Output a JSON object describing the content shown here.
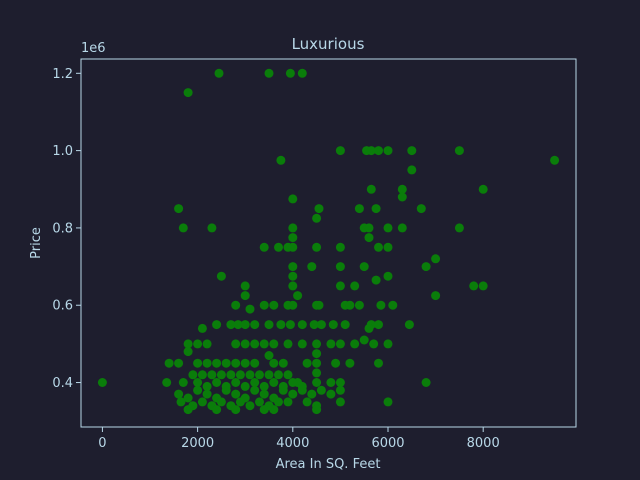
{
  "chart_data": {
    "type": "scatter",
    "title": "Luxurious",
    "xlabel": "Area In SQ. Feet",
    "ylabel": "Price",
    "y_offset_label": "1e6",
    "xlim": [
      -450,
      9950
    ],
    "ylim": [
      0.285,
      1.237
    ],
    "x_ticks": [
      0,
      2000,
      4000,
      6000,
      8000
    ],
    "x_tick_labels": [
      "0",
      "2000",
      "4000",
      "6000",
      "8000"
    ],
    "y_ticks": [
      0.4,
      0.6,
      0.8,
      1.0,
      1.2
    ],
    "y_tick_labels": [
      "0.4",
      "0.6",
      "0.8",
      "1.0",
      "1.2"
    ],
    "grid": false,
    "colors": {
      "background": "#1e1e2e",
      "axes": "#b8d8e8",
      "points": "#0a7d0a"
    },
    "points": [
      [
        0,
        0.4
      ],
      [
        1350,
        0.4
      ],
      [
        1400,
        0.45
      ],
      [
        1600,
        0.85
      ],
      [
        1700,
        0.8
      ],
      [
        1800,
        1.15
      ],
      [
        2300,
        0.8
      ],
      [
        2450,
        1.2
      ],
      [
        3500,
        1.2
      ],
      [
        3950,
        1.2
      ],
      [
        4200,
        1.2
      ],
      [
        3750,
        0.975
      ],
      [
        2500,
        0.675
      ],
      [
        3400,
        0.75
      ],
      [
        3700,
        0.75
      ],
      [
        3900,
        0.75
      ],
      [
        4000,
        0.875
      ],
      [
        4000,
        0.8
      ],
      [
        4000,
        0.775
      ],
      [
        4000,
        0.75
      ],
      [
        4000,
        0.7
      ],
      [
        4000,
        0.675
      ],
      [
        4000,
        0.65
      ],
      [
        4100,
        0.625
      ],
      [
        4400,
        0.7
      ],
      [
        4500,
        0.825
      ],
      [
        4550,
        0.85
      ],
      [
        4500,
        0.75
      ],
      [
        5000,
        1.0
      ],
      [
        5000,
        0.75
      ],
      [
        5000,
        0.7
      ],
      [
        5000,
        0.65
      ],
      [
        5400,
        0.85
      ],
      [
        5500,
        0.8
      ],
      [
        5550,
        1.0
      ],
      [
        5650,
        1.0
      ],
      [
        5800,
        1.0
      ],
      [
        6000,
        1.0
      ],
      [
        6500,
        1.0
      ],
      [
        7500,
        1.0
      ],
      [
        9500,
        0.975
      ],
      [
        6500,
        0.95
      ],
      [
        5650,
        0.9
      ],
      [
        5750,
        0.85
      ],
      [
        6300,
        0.9
      ],
      [
        6300,
        0.88
      ],
      [
        6700,
        0.85
      ],
      [
        8000,
        0.9
      ],
      [
        5600,
        0.8
      ],
      [
        5600,
        0.775
      ],
      [
        5800,
        0.75
      ],
      [
        6000,
        0.8
      ],
      [
        6000,
        0.75
      ],
      [
        6300,
        0.8
      ],
      [
        7500,
        0.8
      ],
      [
        7000,
        0.72
      ],
      [
        6800,
        0.7
      ],
      [
        5500,
        0.7
      ],
      [
        5750,
        0.665
      ],
      [
        6000,
        0.675
      ],
      [
        7800,
        0.65
      ],
      [
        8000,
        0.65
      ],
      [
        7000,
        0.625
      ],
      [
        5300,
        0.65
      ],
      [
        5100,
        0.6
      ],
      [
        5200,
        0.6
      ],
      [
        5400,
        0.6
      ],
      [
        5850,
        0.6
      ],
      [
        6100,
        0.6
      ],
      [
        4500,
        0.6
      ],
      [
        4550,
        0.6
      ],
      [
        4000,
        0.6
      ],
      [
        3900,
        0.6
      ],
      [
        3600,
        0.6
      ],
      [
        3400,
        0.6
      ],
      [
        3000,
        0.65
      ],
      [
        3000,
        0.625
      ],
      [
        2800,
        0.6
      ],
      [
        3100,
        0.59
      ],
      [
        2700,
        0.55
      ],
      [
        2850,
        0.55
      ],
      [
        3000,
        0.55
      ],
      [
        3500,
        0.55
      ],
      [
        3750,
        0.55
      ],
      [
        3950,
        0.55
      ],
      [
        4200,
        0.55
      ],
      [
        4450,
        0.55
      ],
      [
        4600,
        0.55
      ],
      [
        4850,
        0.55
      ],
      [
        5100,
        0.55
      ],
      [
        5650,
        0.55
      ],
      [
        5800,
        0.55
      ],
      [
        6450,
        0.55
      ],
      [
        5600,
        0.54
      ],
      [
        2100,
        0.54
      ],
      [
        2400,
        0.55
      ],
      [
        3200,
        0.55
      ],
      [
        1800,
        0.5
      ],
      [
        2000,
        0.5
      ],
      [
        2200,
        0.5
      ],
      [
        2800,
        0.5
      ],
      [
        3000,
        0.5
      ],
      [
        3200,
        0.5
      ],
      [
        3400,
        0.5
      ],
      [
        3600,
        0.5
      ],
      [
        3900,
        0.5
      ],
      [
        4200,
        0.5
      ],
      [
        4500,
        0.5
      ],
      [
        4800,
        0.5
      ],
      [
        5000,
        0.5
      ],
      [
        5300,
        0.5
      ],
      [
        5500,
        0.51
      ],
      [
        5700,
        0.5
      ],
      [
        6000,
        0.5
      ],
      [
        5800,
        0.45
      ],
      [
        4500,
        0.475
      ],
      [
        4500,
        0.45
      ],
      [
        4500,
        0.425
      ],
      [
        4500,
        0.4
      ],
      [
        4300,
        0.45
      ],
      [
        4100,
        0.4
      ],
      [
        3800,
        0.45
      ],
      [
        3600,
        0.45
      ],
      [
        3500,
        0.47
      ],
      [
        3200,
        0.45
      ],
      [
        3000,
        0.45
      ],
      [
        2800,
        0.45
      ],
      [
        2600,
        0.45
      ],
      [
        2400,
        0.45
      ],
      [
        2200,
        0.45
      ],
      [
        2000,
        0.45
      ],
      [
        1800,
        0.48
      ],
      [
        1600,
        0.45
      ],
      [
        1700,
        0.4
      ],
      [
        1900,
        0.42
      ],
      [
        2100,
        0.42
      ],
      [
        2300,
        0.42
      ],
      [
        2500,
        0.42
      ],
      [
        2700,
        0.42
      ],
      [
        2900,
        0.42
      ],
      [
        3100,
        0.42
      ],
      [
        3300,
        0.42
      ],
      [
        3500,
        0.42
      ],
      [
        3700,
        0.42
      ],
      [
        3900,
        0.42
      ],
      [
        4800,
        0.4
      ],
      [
        5000,
        0.4
      ],
      [
        5000,
        0.38
      ],
      [
        5200,
        0.45
      ],
      [
        4900,
        0.45
      ],
      [
        1600,
        0.37
      ],
      [
        1800,
        0.36
      ],
      [
        2000,
        0.38
      ],
      [
        2200,
        0.37
      ],
      [
        2400,
        0.36
      ],
      [
        2600,
        0.38
      ],
      [
        2800,
        0.37
      ],
      [
        3000,
        0.36
      ],
      [
        3200,
        0.38
      ],
      [
        3400,
        0.37
      ],
      [
        3600,
        0.36
      ],
      [
        3800,
        0.38
      ],
      [
        4000,
        0.37
      ],
      [
        4200,
        0.38
      ],
      [
        4400,
        0.37
      ],
      [
        4600,
        0.38
      ],
      [
        4800,
        0.37
      ],
      [
        1650,
        0.35
      ],
      [
        1900,
        0.34
      ],
      [
        2100,
        0.35
      ],
      [
        2300,
        0.34
      ],
      [
        2500,
        0.35
      ],
      [
        2700,
        0.34
      ],
      [
        2900,
        0.35
      ],
      [
        3100,
        0.34
      ],
      [
        3300,
        0.35
      ],
      [
        3500,
        0.34
      ],
      [
        3700,
        0.35
      ],
      [
        3900,
        0.35
      ],
      [
        4300,
        0.35
      ],
      [
        4500,
        0.34
      ],
      [
        5000,
        0.35
      ],
      [
        6000,
        0.35
      ],
      [
        6800,
        0.4
      ],
      [
        1800,
        0.33
      ],
      [
        2400,
        0.33
      ],
      [
        2800,
        0.33
      ],
      [
        3400,
        0.33
      ],
      [
        3600,
        0.33
      ],
      [
        4500,
        0.33
      ],
      [
        2000,
        0.4
      ],
      [
        2200,
        0.39
      ],
      [
        2400,
        0.4
      ],
      [
        2600,
        0.39
      ],
      [
        2800,
        0.4
      ],
      [
        3000,
        0.39
      ],
      [
        3200,
        0.4
      ],
      [
        3400,
        0.39
      ],
      [
        3600,
        0.4
      ],
      [
        3800,
        0.39
      ],
      [
        4000,
        0.4
      ],
      [
        4200,
        0.39
      ]
    ]
  }
}
